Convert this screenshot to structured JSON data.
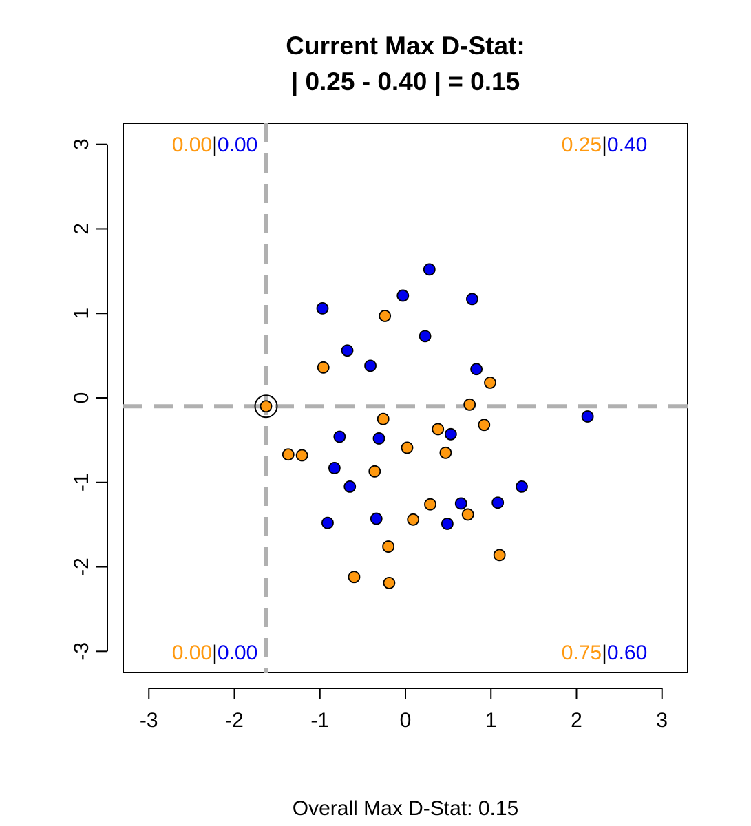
{
  "chart_data": {
    "type": "scatter",
    "title_line1": "Current Max D-Stat:",
    "title_line2": "| 0.25 - 0.40 | = 0.15",
    "caption": "Overall Max D-Stat: 0.15",
    "xlim": [
      -3.3,
      3.3
    ],
    "ylim": [
      -3.25,
      3.25
    ],
    "x_ticks": [
      -3,
      -2,
      -1,
      0,
      1,
      2,
      3
    ],
    "y_ticks": [
      -3,
      -2,
      -1,
      0,
      1,
      2,
      3
    ],
    "colors": {
      "orange": "#ff9910",
      "blue": "#0000ee",
      "divider": "#000000",
      "guide": "#b0b0b0",
      "marker": "#000000"
    },
    "split_point": {
      "x": -1.63,
      "y": -0.1
    },
    "quadrants": {
      "top_left": {
        "orange": "0.00",
        "sep": "|",
        "blue": "0.00"
      },
      "top_right": {
        "orange": "0.25",
        "sep": "|",
        "blue": "0.40"
      },
      "bottom_left": {
        "orange": "0.00",
        "sep": "|",
        "blue": "0.00"
      },
      "bottom_right": {
        "orange": "0.75",
        "sep": "|",
        "blue": "0.60"
      }
    },
    "series": [
      {
        "color": "orange",
        "points": [
          [
            -1.63,
            -0.1
          ],
          [
            -1.37,
            -0.67
          ],
          [
            -1.21,
            -0.68
          ],
          [
            -0.96,
            0.36
          ],
          [
            -0.24,
            0.97
          ],
          [
            -0.26,
            -0.25
          ],
          [
            -0.36,
            -0.87
          ],
          [
            0.02,
            -0.59
          ],
          [
            0.38,
            -0.37
          ],
          [
            0.47,
            -0.65
          ],
          [
            0.75,
            -0.08
          ],
          [
            0.99,
            0.18
          ],
          [
            0.92,
            -0.32
          ],
          [
            0.29,
            -1.26
          ],
          [
            0.09,
            -1.44
          ],
          [
            -0.2,
            -1.76
          ],
          [
            0.73,
            -1.38
          ],
          [
            1.1,
            -1.86
          ],
          [
            -0.6,
            -2.12
          ],
          [
            -0.19,
            -2.19
          ]
        ]
      },
      {
        "color": "blue",
        "points": [
          [
            -0.97,
            1.06
          ],
          [
            -0.68,
            0.56
          ],
          [
            -0.41,
            0.38
          ],
          [
            -0.03,
            1.21
          ],
          [
            0.28,
            1.52
          ],
          [
            0.78,
            1.17
          ],
          [
            0.23,
            0.73
          ],
          [
            0.83,
            0.34
          ],
          [
            2.13,
            -0.22
          ],
          [
            -0.77,
            -0.46
          ],
          [
            -0.31,
            -0.48
          ],
          [
            0.53,
            -0.43
          ],
          [
            -0.83,
            -0.83
          ],
          [
            -0.65,
            -1.05
          ],
          [
            -0.91,
            -1.48
          ],
          [
            -0.34,
            -1.43
          ],
          [
            0.49,
            -1.49
          ],
          [
            0.65,
            -1.25
          ],
          [
            1.08,
            -1.24
          ],
          [
            1.36,
            -1.05
          ]
        ]
      }
    ]
  }
}
